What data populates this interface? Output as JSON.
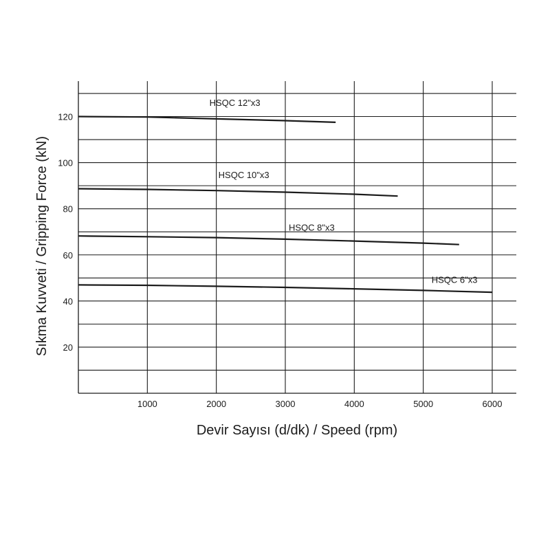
{
  "chart_data": {
    "type": "line",
    "xlabel": "Devir Sayısı (d/dk) / Speed (rpm)",
    "ylabel": "Sıkma Kuvveti / Gripping Force (kN)",
    "xlim": [
      0,
      6350
    ],
    "ylim": [
      0,
      135
    ],
    "x_ticks": [
      1000,
      2000,
      3000,
      4000,
      5000,
      6000
    ],
    "y_ticks": [
      20,
      40,
      60,
      80,
      100,
      120
    ],
    "grid_x": [
      1000,
      2000,
      3000,
      4000,
      5000,
      6000
    ],
    "grid_y": [
      10,
      20,
      30,
      40,
      50,
      60,
      70,
      80,
      90,
      100,
      110,
      120,
      130
    ],
    "grid": true,
    "line_color": "#1a1a1a",
    "series": [
      {
        "name": "HSQC 12\"x3",
        "x": [
          0,
          1000,
          2000,
          3000,
          3730
        ],
        "y": [
          120,
          119.8,
          119,
          118.2,
          117.5
        ],
        "label_at": [
          1900,
          124.6
        ]
      },
      {
        "name": "HSQC 10\"x3",
        "x": [
          0,
          1000,
          2000,
          3000,
          4000,
          4630
        ],
        "y": [
          88.7,
          88.4,
          87.9,
          87.2,
          86.3,
          85.5
        ],
        "label_at": [
          2030,
          93.3
        ]
      },
      {
        "name": "HSQC 8\"x3",
        "x": [
          0,
          1000,
          2000,
          3000,
          4000,
          5000,
          5520
        ],
        "y": [
          68.2,
          67.9,
          67.5,
          66.8,
          66.0,
          65.1,
          64.5
        ],
        "label_at": [
          3050,
          70.5
        ]
      },
      {
        "name": "HSQC 6\"x3",
        "x": [
          0,
          1000,
          2000,
          3000,
          4000,
          5000,
          6000
        ],
        "y": [
          47.0,
          46.8,
          46.4,
          45.9,
          45.3,
          44.6,
          43.8
        ],
        "label_at": [
          5120,
          47.8
        ]
      }
    ]
  }
}
